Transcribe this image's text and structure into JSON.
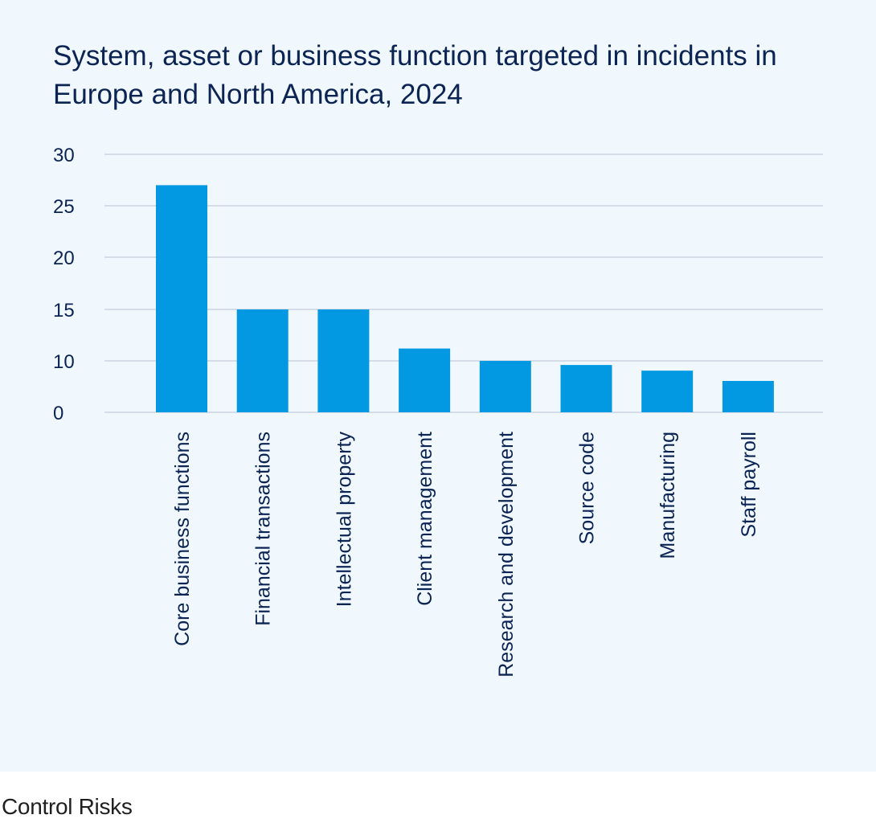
{
  "source": "Control Risks",
  "colors": {
    "background": "#f1f8fd",
    "bar": "#0398e2",
    "grid": "#c9d3e0",
    "text": "#0b2454"
  },
  "chart_data": {
    "type": "bar",
    "title": "System, asset or business function targeted in incidents in Europe and North America, 2024",
    "xlabel": "",
    "ylabel": "",
    "ylim": [
      0,
      30
    ],
    "yticks": [
      0,
      10,
      15,
      20,
      25,
      30
    ],
    "grid": true,
    "categories": [
      "Core business functions",
      "Financial transactions",
      "Intellectual property",
      "Client management",
      "Research and development",
      "Source code",
      "Manufacturing",
      "Staff payroll"
    ],
    "values": [
      27,
      15,
      15,
      11.2,
      10,
      9.2,
      8.1,
      6.1
    ]
  }
}
